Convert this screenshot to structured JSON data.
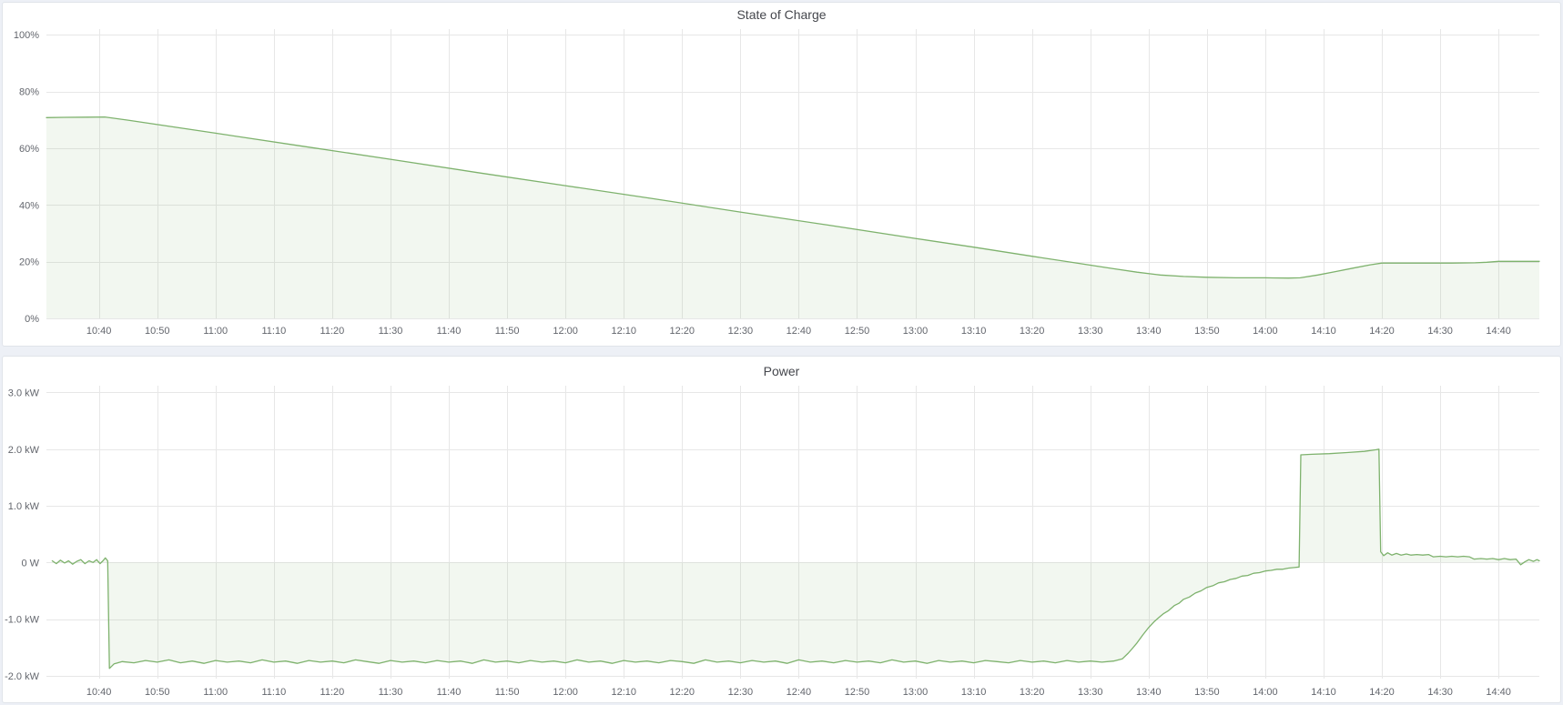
{
  "theme": {
    "page_background": "#edf0f6",
    "panel_background": "#ffffff",
    "panel_border": "#e0e4ea",
    "grid_color": "#e7e7e7",
    "tick_label_color": "#63666d",
    "title_color": "#45474d",
    "series_green": "#7eb26d"
  },
  "chart_data": [
    {
      "type": "area",
      "title": "State of Charge",
      "unit": "percent",
      "legend": false,
      "grid": true,
      "x_range_minutes": [
        631,
        887
      ],
      "x_ticks": [
        "10:40",
        "10:50",
        "11:00",
        "11:10",
        "11:20",
        "11:30",
        "11:40",
        "11:50",
        "12:00",
        "12:10",
        "12:20",
        "12:30",
        "12:40",
        "12:50",
        "13:00",
        "13:10",
        "13:20",
        "13:30",
        "13:40",
        "13:50",
        "14:00",
        "14:10",
        "14:20",
        "14:30",
        "14:40"
      ],
      "y_ticks": [
        {
          "label": "100%",
          "value": 100
        },
        {
          "label": "80%",
          "value": 80
        },
        {
          "label": "60%",
          "value": 60
        },
        {
          "label": "40%",
          "value": 40
        },
        {
          "label": "20%",
          "value": 20
        },
        {
          "label": "0%",
          "value": 0
        }
      ],
      "ylim": [
        0,
        100
      ],
      "series": [
        {
          "name": "soc",
          "label": "State of Charge",
          "color": "#7eb26d",
          "fill_color": "rgba(126,178,109,0.10)",
          "points": [
            [
              631,
              70.8
            ],
            [
              634,
              70.9
            ],
            [
              638,
              70.95
            ],
            [
              641,
              71.0
            ],
            [
              645,
              69.9
            ],
            [
              660,
              65.3
            ],
            [
              675,
              60.7
            ],
            [
              690,
              56.1
            ],
            [
              705,
              51.4
            ],
            [
              720,
              46.8
            ],
            [
              735,
              42.2
            ],
            [
              750,
              37.5
            ],
            [
              765,
              32.9
            ],
            [
              780,
              28.2
            ],
            [
              790,
              25.1
            ],
            [
              800,
              21.9
            ],
            [
              808,
              19.4
            ],
            [
              814,
              17.5
            ],
            [
              818,
              16.3
            ],
            [
              822,
              15.3
            ],
            [
              826,
              14.8
            ],
            [
              830,
              14.5
            ],
            [
              835,
              14.3
            ],
            [
              840,
              14.3
            ],
            [
              844,
              14.2
            ],
            [
              846,
              14.3
            ],
            [
              849,
              15.3
            ],
            [
              852,
              16.5
            ],
            [
              855,
              17.7
            ],
            [
              858,
              18.9
            ],
            [
              860,
              19.5
            ],
            [
              864,
              19.5
            ],
            [
              868,
              19.5
            ],
            [
              872,
              19.5
            ],
            [
              876,
              19.6
            ],
            [
              878,
              19.8
            ],
            [
              880,
              20.1
            ],
            [
              883,
              20.1
            ],
            [
              887,
              20.1
            ]
          ]
        }
      ]
    },
    {
      "type": "area",
      "title": "Power",
      "unit": "watt",
      "legend": false,
      "grid": true,
      "x_range_minutes": [
        631,
        887
      ],
      "x_ticks": [
        "10:40",
        "10:50",
        "11:00",
        "11:10",
        "11:20",
        "11:30",
        "11:40",
        "11:50",
        "12:00",
        "12:10",
        "12:20",
        "12:30",
        "12:40",
        "12:50",
        "13:00",
        "13:10",
        "13:20",
        "13:30",
        "13:40",
        "13:50",
        "14:00",
        "14:10",
        "14:20",
        "14:30",
        "14:40"
      ],
      "y_ticks": [
        {
          "label": "3.0 kW",
          "value": 3
        },
        {
          "label": "2.0 kW",
          "value": 2
        },
        {
          "label": "1.0 kW",
          "value": 1
        },
        {
          "label": "0 W",
          "value": 0
        },
        {
          "label": "-1.0 kW",
          "value": -1
        },
        {
          "label": "-2.0 kW",
          "value": -2
        }
      ],
      "ylim": [
        -2.0,
        3.0
      ],
      "series": [
        {
          "name": "power",
          "label": "Power",
          "color": "#7eb26d",
          "fill_color": "rgba(126,178,109,0.10)",
          "points": [
            [
              632,
              0.03
            ],
            [
              632.7,
              -0.02
            ],
            [
              633.4,
              0.04
            ],
            [
              634.1,
              -0.01
            ],
            [
              634.8,
              0.03
            ],
            [
              635.5,
              -0.03
            ],
            [
              636.2,
              0.02
            ],
            [
              636.9,
              0.05
            ],
            [
              637.6,
              -0.02
            ],
            [
              638.3,
              0.03
            ],
            [
              639,
              0.0
            ],
            [
              639.6,
              0.05
            ],
            [
              640.2,
              -0.02
            ],
            [
              640.7,
              0.03
            ],
            [
              641.1,
              0.08
            ],
            [
              641.5,
              0.03
            ],
            [
              641.8,
              -1.87
            ],
            [
              642.6,
              -1.79
            ],
            [
              644,
              -1.75
            ],
            [
              646,
              -1.77
            ],
            [
              648,
              -1.73
            ],
            [
              650,
              -1.76
            ],
            [
              652,
              -1.72
            ],
            [
              654,
              -1.77
            ],
            [
              656,
              -1.74
            ],
            [
              658,
              -1.78
            ],
            [
              660,
              -1.73
            ],
            [
              662,
              -1.76
            ],
            [
              664,
              -1.74
            ],
            [
              666,
              -1.77
            ],
            [
              668,
              -1.72
            ],
            [
              670,
              -1.76
            ],
            [
              672,
              -1.74
            ],
            [
              674,
              -1.78
            ],
            [
              676,
              -1.73
            ],
            [
              678,
              -1.76
            ],
            [
              680,
              -1.74
            ],
            [
              682,
              -1.77
            ],
            [
              684,
              -1.72
            ],
            [
              686,
              -1.75
            ],
            [
              688,
              -1.78
            ],
            [
              690,
              -1.73
            ],
            [
              692,
              -1.76
            ],
            [
              694,
              -1.74
            ],
            [
              696,
              -1.77
            ],
            [
              698,
              -1.73
            ],
            [
              700,
              -1.76
            ],
            [
              702,
              -1.74
            ],
            [
              704,
              -1.78
            ],
            [
              706,
              -1.72
            ],
            [
              708,
              -1.76
            ],
            [
              710,
              -1.74
            ],
            [
              712,
              -1.77
            ],
            [
              714,
              -1.73
            ],
            [
              716,
              -1.76
            ],
            [
              718,
              -1.74
            ],
            [
              720,
              -1.77
            ],
            [
              722,
              -1.72
            ],
            [
              724,
              -1.76
            ],
            [
              726,
              -1.74
            ],
            [
              728,
              -1.78
            ],
            [
              730,
              -1.73
            ],
            [
              732,
              -1.76
            ],
            [
              734,
              -1.74
            ],
            [
              736,
              -1.77
            ],
            [
              738,
              -1.73
            ],
            [
              740,
              -1.75
            ],
            [
              742,
              -1.78
            ],
            [
              744,
              -1.72
            ],
            [
              746,
              -1.76
            ],
            [
              748,
              -1.74
            ],
            [
              750,
              -1.77
            ],
            [
              752,
              -1.73
            ],
            [
              754,
              -1.76
            ],
            [
              756,
              -1.74
            ],
            [
              758,
              -1.78
            ],
            [
              760,
              -1.72
            ],
            [
              762,
              -1.76
            ],
            [
              764,
              -1.74
            ],
            [
              766,
              -1.77
            ],
            [
              768,
              -1.73
            ],
            [
              770,
              -1.76
            ],
            [
              772,
              -1.74
            ],
            [
              774,
              -1.77
            ],
            [
              776,
              -1.72
            ],
            [
              778,
              -1.76
            ],
            [
              780,
              -1.74
            ],
            [
              782,
              -1.78
            ],
            [
              784,
              -1.73
            ],
            [
              786,
              -1.76
            ],
            [
              788,
              -1.74
            ],
            [
              790,
              -1.77
            ],
            [
              792,
              -1.73
            ],
            [
              794,
              -1.75
            ],
            [
              796,
              -1.77
            ],
            [
              798,
              -1.73
            ],
            [
              800,
              -1.76
            ],
            [
              802,
              -1.74
            ],
            [
              804,
              -1.77
            ],
            [
              806,
              -1.73
            ],
            [
              808,
              -1.76
            ],
            [
              810,
              -1.74
            ],
            [
              812,
              -1.76
            ],
            [
              814,
              -1.74
            ],
            [
              815.5,
              -1.7
            ],
            [
              816.5,
              -1.6
            ],
            [
              817.2,
              -1.52
            ],
            [
              818,
              -1.42
            ],
            [
              819,
              -1.28
            ],
            [
              820,
              -1.15
            ],
            [
              821,
              -1.04
            ],
            [
              822,
              -0.95
            ],
            [
              822.6,
              -0.9
            ],
            [
              823.4,
              -0.85
            ],
            [
              824.4,
              -0.76
            ],
            [
              825.2,
              -0.72
            ],
            [
              826,
              -0.65
            ],
            [
              827,
              -0.61
            ],
            [
              828,
              -0.54
            ],
            [
              829,
              -0.5
            ],
            [
              830,
              -0.44
            ],
            [
              831,
              -0.41
            ],
            [
              832,
              -0.36
            ],
            [
              833,
              -0.34
            ],
            [
              834,
              -0.3
            ],
            [
              835,
              -0.28
            ],
            [
              836,
              -0.24
            ],
            [
              837,
              -0.23
            ],
            [
              838,
              -0.19
            ],
            [
              839,
              -0.18
            ],
            [
              840,
              -0.15
            ],
            [
              841,
              -0.14
            ],
            [
              842,
              -0.12
            ],
            [
              843,
              -0.12
            ],
            [
              844,
              -0.1
            ],
            [
              845,
              -0.09
            ],
            [
              845.8,
              -0.08
            ],
            [
              846.1,
              1.9
            ],
            [
              848,
              1.91
            ],
            [
              851,
              1.92
            ],
            [
              854,
              1.94
            ],
            [
              857,
              1.96
            ],
            [
              859,
              1.99
            ],
            [
              859.5,
              2.0
            ],
            [
              859.8,
              0.19
            ],
            [
              860.3,
              0.12
            ],
            [
              861,
              0.17
            ],
            [
              861.7,
              0.13
            ],
            [
              862.5,
              0.16
            ],
            [
              863.3,
              0.13
            ],
            [
              864.2,
              0.15
            ],
            [
              865,
              0.13
            ],
            [
              866,
              0.14
            ],
            [
              867,
              0.13
            ],
            [
              868,
              0.14
            ],
            [
              868.8,
              0.1
            ],
            [
              870,
              0.11
            ],
            [
              871,
              0.1
            ],
            [
              872,
              0.11
            ],
            [
              873,
              0.1
            ],
            [
              874,
              0.11
            ],
            [
              875,
              0.1
            ],
            [
              875.8,
              0.06
            ],
            [
              877,
              0.07
            ],
            [
              878,
              0.06
            ],
            [
              879,
              0.07
            ],
            [
              880,
              0.05
            ],
            [
              881,
              0.07
            ],
            [
              882,
              0.05
            ],
            [
              883,
              0.06
            ],
            [
              883.8,
              -0.04
            ],
            [
              884.5,
              0.01
            ],
            [
              885.2,
              0.05
            ],
            [
              886,
              0.02
            ],
            [
              886.6,
              0.05
            ],
            [
              887,
              0.03
            ]
          ]
        }
      ]
    }
  ]
}
